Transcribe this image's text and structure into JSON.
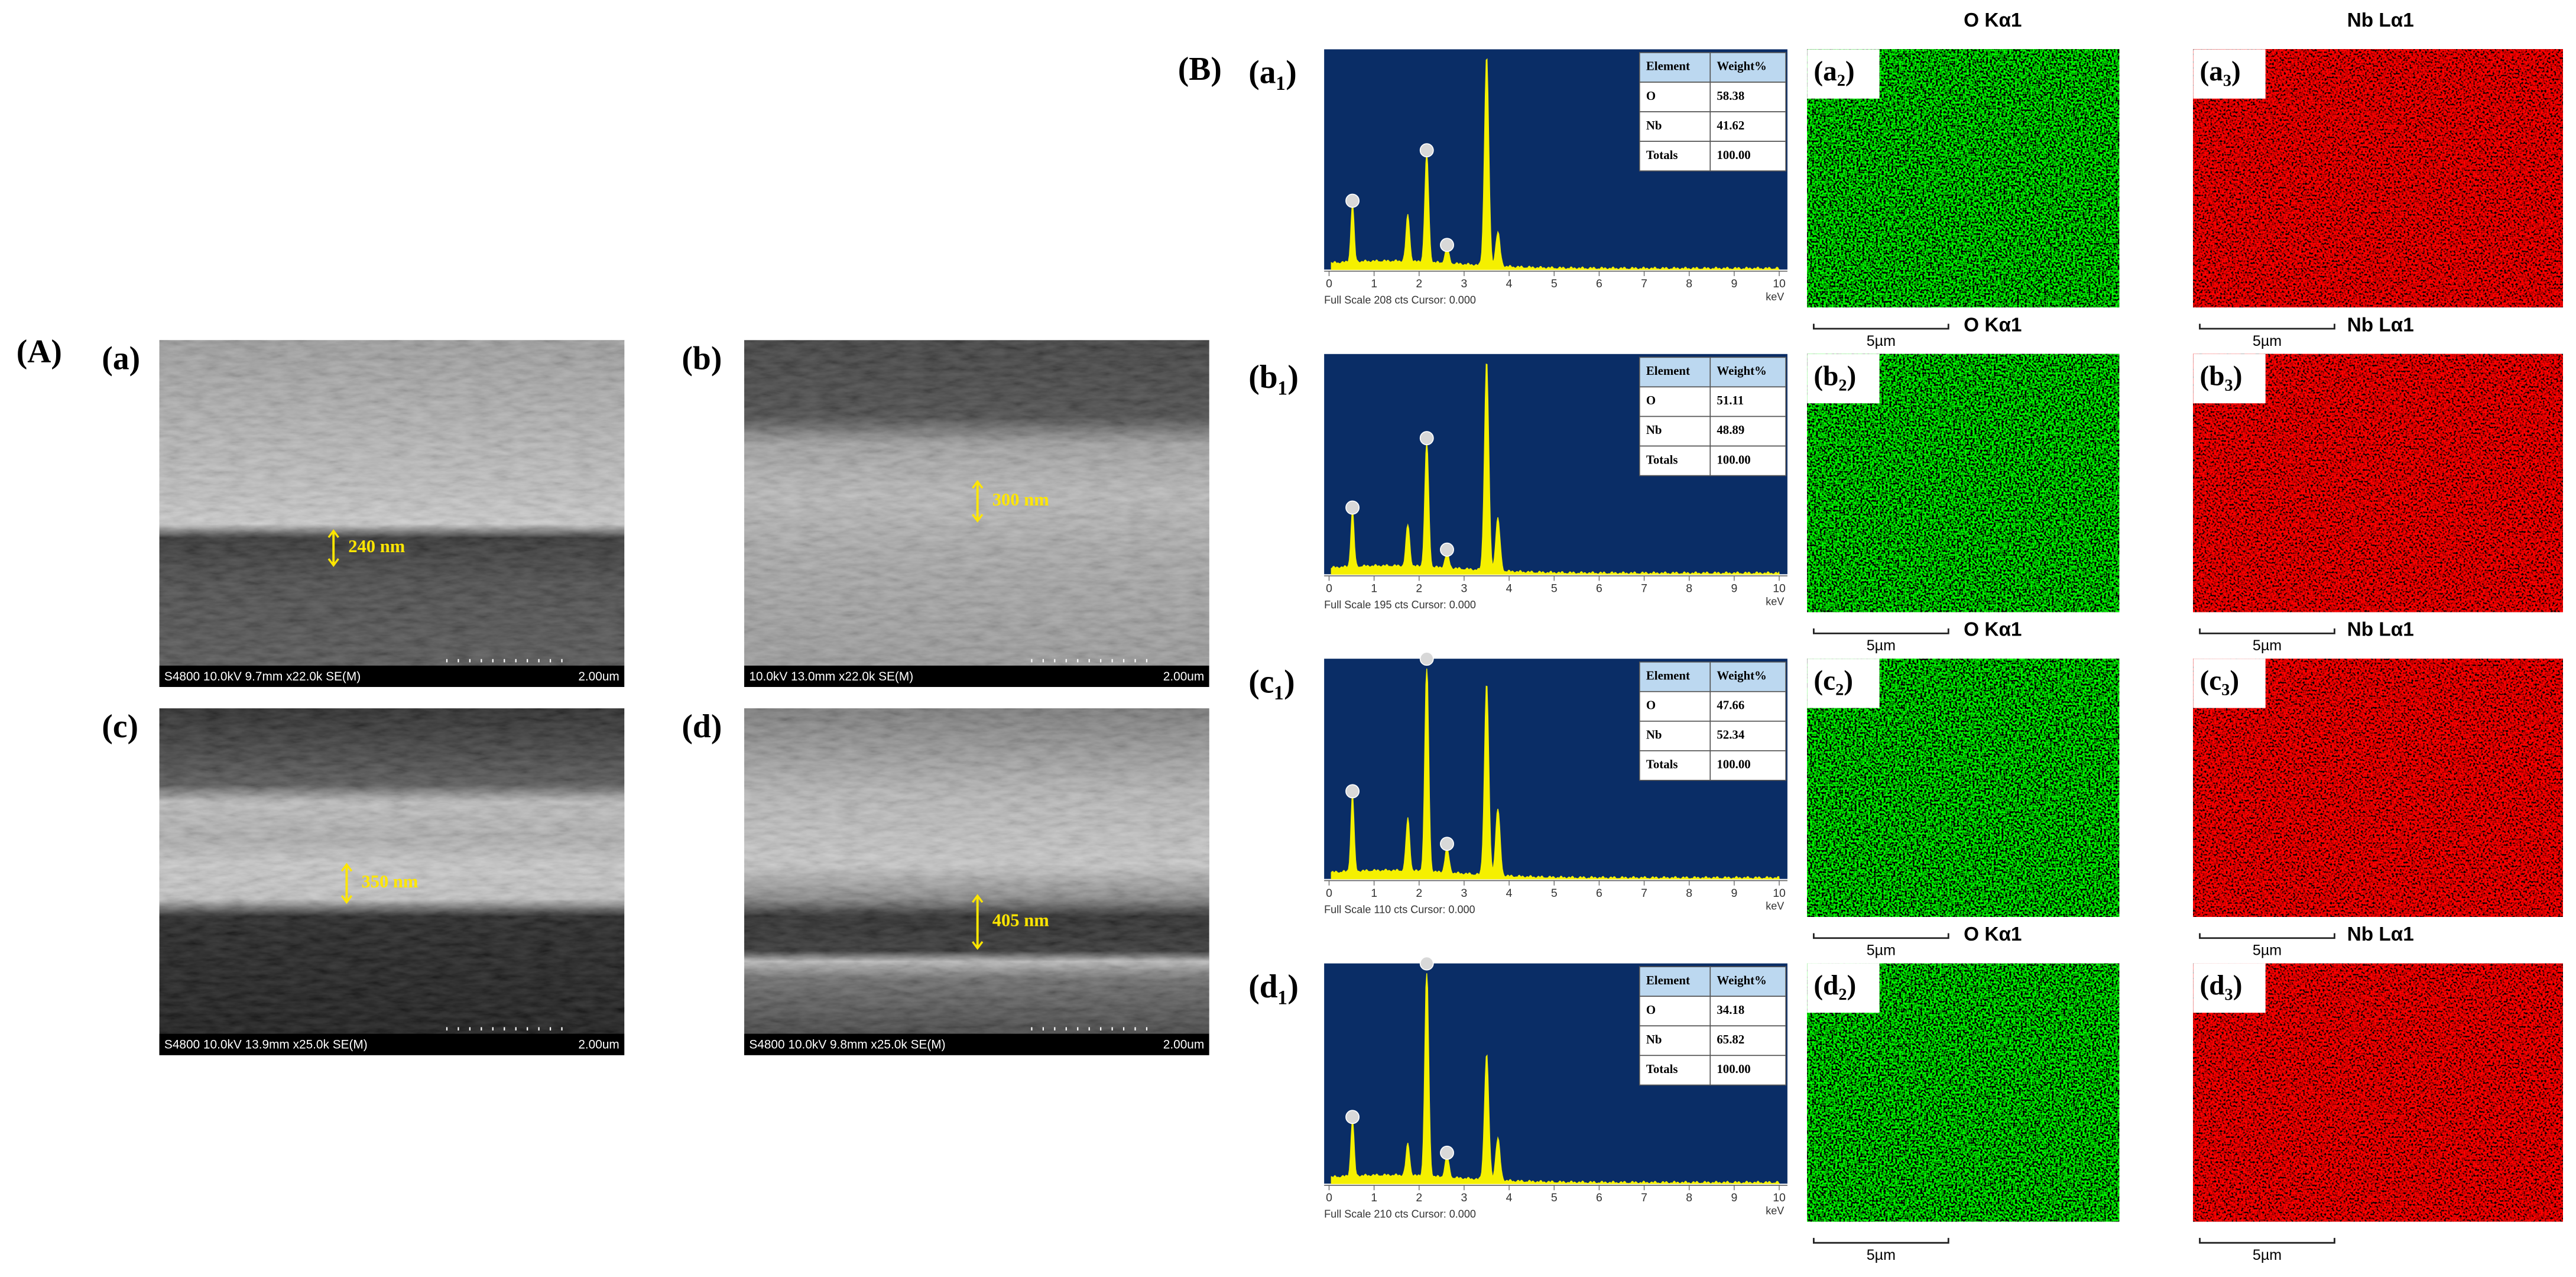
{
  "panel_a": {
    "label": "(A)",
    "images": [
      {
        "label": "(a)",
        "caption": "S4800 10.0kV 9.7mm x22.0k SE(M)",
        "scale": "2.00um",
        "thickness": "240 nm"
      },
      {
        "label": "(b)",
        "caption": "10.0kV 13.0mm x22.0k SE(M)",
        "scale": "2.00um",
        "thickness": "300 nm"
      },
      {
        "label": "(c)",
        "caption": "S4800 10.0kV 13.9mm x25.0k SE(M)",
        "scale": "2.00um",
        "thickness": "350 nm"
      },
      {
        "label": "(d)",
        "caption": "S4800 10.0kV 9.8mm x25.0k SE(M)",
        "scale": "2.00um",
        "thickness": "405 nm"
      }
    ]
  },
  "panel_b": {
    "label": "(B)",
    "spectrum_axis": {
      "ticks": [
        "0",
        "1",
        "2",
        "3",
        "4",
        "5",
        "6",
        "7",
        "8",
        "9",
        "10"
      ],
      "unit": "keV"
    },
    "rows": [
      {
        "spectrum_label": "(a₁)",
        "footer": "Full Scale 208 cts Cursor: 0.000",
        "table": {
          "header": [
            "Element",
            "Weight%"
          ],
          "rows": [
            [
              "O",
              "58.38"
            ],
            [
              "Nb",
              "41.62"
            ],
            [
              "Totals",
              "100.00"
            ]
          ]
        },
        "o_map": {
          "title": "O Kα1",
          "label": "(a₂)",
          "scale_bar": "5µm"
        },
        "nb_map": {
          "title": "Nb Lα1",
          "label": "(a₃)",
          "scale_bar": "5µm"
        }
      },
      {
        "spectrum_label": "(b₁)",
        "footer": "Full Scale 195 cts Cursor: 0.000",
        "table": {
          "header": [
            "Element",
            "Weight%"
          ],
          "rows": [
            [
              "O",
              "51.11"
            ],
            [
              "Nb",
              "48.89"
            ],
            [
              "Totals",
              "100.00"
            ]
          ]
        },
        "o_map": {
          "title": "O Kα1",
          "label": "(b₂)",
          "scale_bar": "5µm"
        },
        "nb_map": {
          "title": "Nb Lα1",
          "label": "(b₃)",
          "scale_bar": "5µm"
        }
      },
      {
        "spectrum_label": "(c₁)",
        "footer": "Full Scale 110 cts Cursor: 0.000",
        "table": {
          "header": [
            "Element",
            "Weight%"
          ],
          "rows": [
            [
              "O",
              "47.66"
            ],
            [
              "Nb",
              "52.34"
            ],
            [
              "Totals",
              "100.00"
            ]
          ]
        },
        "o_map": {
          "title": "O Kα1",
          "label": "(c₂)",
          "scale_bar": "5µm"
        },
        "nb_map": {
          "title": "Nb Lα1",
          "label": "(c₃)",
          "scale_bar": "5µm"
        }
      },
      {
        "spectrum_label": "(d₁)",
        "footer": "Full Scale 210 cts Cursor: 0.000",
        "table": {
          "header": [
            "Element",
            "Weight%"
          ],
          "rows": [
            [
              "O",
              "34.18"
            ],
            [
              "Nb",
              "65.82"
            ],
            [
              "Totals",
              "100.00"
            ]
          ]
        },
        "o_map": {
          "title": "O Kα1",
          "label": "(d₂)",
          "scale_bar": "5µm"
        },
        "nb_map": {
          "title": "Nb Lα1",
          "label": "(d₃)",
          "scale_bar": "5µm"
        }
      }
    ]
  }
}
